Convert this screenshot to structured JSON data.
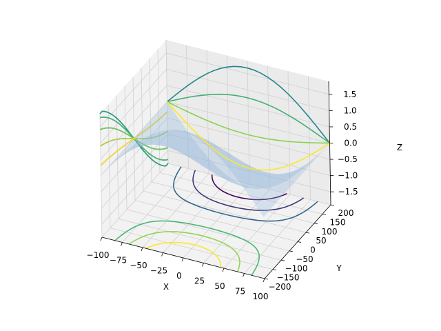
{
  "chart_data": {
    "type": "surface3d",
    "xlabel": "X",
    "ylabel": "Y",
    "zlabel": "Z",
    "xlim": [
      -100,
      100
    ],
    "ylim": [
      -200,
      200
    ],
    "zlim": [
      -1.9,
      1.9
    ],
    "xticks": [
      -100,
      -75,
      -50,
      -25,
      0,
      25,
      50,
      75,
      100
    ],
    "yticks": [
      -200,
      -150,
      -100,
      -50,
      0,
      50,
      100,
      150,
      200
    ],
    "zticks": [
      -1.5,
      -1.0,
      -0.5,
      0.0,
      0.5,
      1.0,
      1.5
    ],
    "xtick_labels": [
      "−100",
      "−75",
      "−50",
      "−25",
      "0",
      "25",
      "50",
      "75",
      "100"
    ],
    "ytick_labels": [
      "−200",
      "−150",
      "−100",
      "−50",
      "0",
      "50",
      "100",
      "150",
      "200"
    ],
    "ztick_labels": [
      "−1.5",
      "−1.0",
      "−0.5",
      "0.0",
      "0.5",
      "1.0",
      "1.5"
    ],
    "grid": true,
    "surface": {
      "color": "#8fb5dc",
      "alpha": 0.45,
      "function": "-cos(pi*x/200) * (y/200 + sin(pi*y/400))"
    },
    "contour_colormap": "viridis",
    "projections": [
      "zdir=z at z=-1.9",
      "zdir=x at x=-100",
      "zdir=y at y=200"
    ],
    "contour_levels": [
      -1.5,
      -1.0,
      -0.5,
      0.0,
      0.5,
      1.0,
      1.5
    ]
  }
}
